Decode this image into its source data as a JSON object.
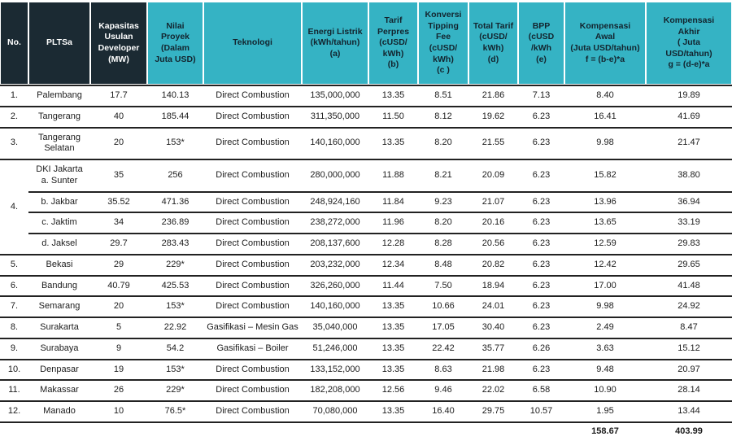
{
  "title": "Tabel PLTSa - Tarif dan Kompensasi",
  "colors": {
    "header_dark": "#1b2a33",
    "header_teal": "#35b3c4",
    "header_dark_text": "#ffffff",
    "header_teal_text": "#13242e",
    "body_text": "#1c1c1c",
    "row_line": "#222222"
  },
  "table": {
    "columns": [
      {
        "id": "no",
        "label": "No."
      },
      {
        "id": "pltsa",
        "label": "PLTSa"
      },
      {
        "id": "kapasitas",
        "label": "Kapasitas\nUsulan\nDeveloper\n(MW)"
      },
      {
        "id": "nilai_proyek",
        "label": "Nilai\nProyek\n(Dalam\nJuta USD)"
      },
      {
        "id": "teknologi",
        "label": "Teknologi"
      },
      {
        "id": "energi_listrik",
        "label": "Energi Listrik\n(kWh/tahun)\n(a)"
      },
      {
        "id": "tarif_perpres",
        "label": "Tarif\nPerpres\n(cUSD/\nkWh)\n(b)"
      },
      {
        "id": "konversi_tipping_fee",
        "label": "Konversi\nTipping\nFee\n(cUSD/\nkWh)\n(c )"
      },
      {
        "id": "total_tarif",
        "label": "Total Tarif\n(cUSD/\nkWh)\n(d)"
      },
      {
        "id": "bpp",
        "label": "BPP\n(cUSD\n/kWh\n(e)"
      },
      {
        "id": "kompensasi_awal",
        "label": "Kompensasi\nAwal\n(Juta USD/tahun)\nf = (b-e)*a"
      },
      {
        "id": "kompensasi_akhir",
        "label": "Kompensasi\nAkhir\n( Juta\nUSD/tahun)\ng = (d-e)*a"
      }
    ],
    "rows": [
      {
        "no": "1.",
        "rowspan": 1,
        "name": "Palembang",
        "values": [
          "17.7",
          "140.13",
          "Direct Combustion",
          "135,000,000",
          "13.35",
          "8.51",
          "21.86",
          "7.13",
          "8.40",
          "19.89"
        ]
      },
      {
        "no": "2.",
        "rowspan": 1,
        "name": "Tangerang",
        "values": [
          "40",
          "185.44",
          "Direct Combustion",
          "311,350,000",
          "11.50",
          "8.12",
          "19.62",
          "6.23",
          "16.41",
          "41.69"
        ]
      },
      {
        "no": "3.",
        "rowspan": 1,
        "name": "Tangerang Selatan",
        "values": [
          "20",
          "153*",
          "Direct Combustion",
          "140,160,000",
          "13.35",
          "8.20",
          "21.55",
          "6.23",
          "9.98",
          "21.47"
        ]
      },
      {
        "no": "4.",
        "rowspan": 4,
        "name": "DKI Jakarta\na. Sunter",
        "values": [
          "35",
          "256",
          "Direct Combustion",
          "280,000,000",
          "11.88",
          "8.21",
          "20.09",
          "6.23",
          "15.82",
          "38.80"
        ]
      },
      {
        "no": null,
        "name": "b. Jakbar",
        "values": [
          "35.52",
          "471.36",
          "Direct Combustion",
          "248,924,160",
          "11.84",
          "9.23",
          "21.07",
          "6.23",
          "13.96",
          "36.94"
        ]
      },
      {
        "no": null,
        "name": "c. Jaktim",
        "values": [
          "34",
          "236.89",
          "Direct Combustion",
          "238,272,000",
          "11.96",
          "8.20",
          "20.16",
          "6.23",
          "13.65",
          "33.19"
        ]
      },
      {
        "no": null,
        "name": "d. Jaksel",
        "values": [
          "29.7",
          "283.43",
          "Direct Combustion",
          "208,137,600",
          "12.28",
          "8.28",
          "20.56",
          "6.23",
          "12.59",
          "29.83"
        ]
      },
      {
        "no": "5.",
        "rowspan": 1,
        "name": "Bekasi",
        "values": [
          "29",
          "229*",
          "Direct Combustion",
          "203,232,000",
          "12.34",
          "8.48",
          "20.82",
          "6.23",
          "12.42",
          "29.65"
        ]
      },
      {
        "no": "6.",
        "rowspan": 1,
        "name": "Bandung",
        "values": [
          "40.79",
          "425.53",
          "Direct Combustion",
          "326,260,000",
          "11.44",
          "7.50",
          "18.94",
          "6.23",
          "17.00",
          "41.48"
        ]
      },
      {
        "no": "7.",
        "rowspan": 1,
        "name": "Semarang",
        "values": [
          "20",
          "153*",
          "Direct Combustion",
          "140,160,000",
          "13.35",
          "10.66",
          "24.01",
          "6.23",
          "9.98",
          "24.92"
        ]
      },
      {
        "no": "8.",
        "rowspan": 1,
        "name": "Surakarta",
        "values": [
          "5",
          "22.92",
          "Gasifikasi – Mesin Gas",
          "35,040,000",
          "13.35",
          "17.05",
          "30.40",
          "6.23",
          "2.49",
          "8.47"
        ]
      },
      {
        "no": "9.",
        "rowspan": 1,
        "name": "Surabaya",
        "values": [
          "9",
          "54.2",
          "Gasifikasi – Boiler",
          "51,246,000",
          "13.35",
          "22.42",
          "35.77",
          "6.26",
          "3.63",
          "15.12"
        ]
      },
      {
        "no": "10.",
        "rowspan": 1,
        "name": "Denpasar",
        "values": [
          "19",
          "153*",
          "Direct Combustion",
          "133,152,000",
          "13.35",
          "8.63",
          "21.98",
          "6.23",
          "9.48",
          "20.97"
        ]
      },
      {
        "no": "11.",
        "rowspan": 1,
        "name": "Makassar",
        "values": [
          "26",
          "229*",
          "Direct Combustion",
          "182,208,000",
          "12.56",
          "9.46",
          "22.02",
          "6.58",
          "10.90",
          "28.14"
        ]
      },
      {
        "no": "12.",
        "rowspan": 1,
        "name": "Manado",
        "values": [
          "10",
          "76.5*",
          "Direct Combustion",
          "70,080,000",
          "13.35",
          "16.40",
          "29.75",
          "10.57",
          "1.95",
          "13.44"
        ]
      }
    ],
    "totals": {
      "kompensasi_awal": "158.67",
      "kompensasi_akhir": "403.99"
    }
  }
}
